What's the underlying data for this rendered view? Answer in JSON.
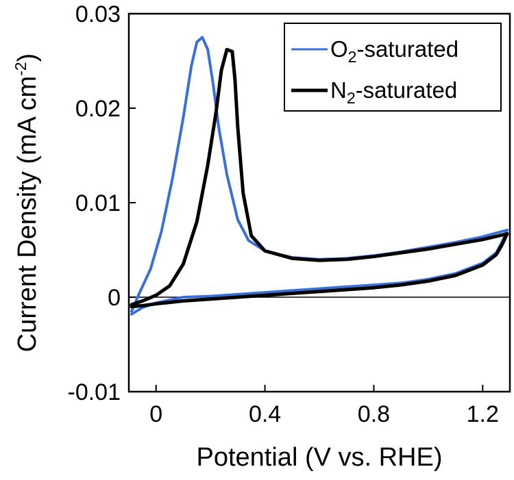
{
  "chart_data": {
    "type": "line",
    "title": "",
    "xlabel": "Potential (V vs. RHE)",
    "ylabel_main": "Current Density (mA cm",
    "ylabel_sup": "-2",
    "ylabel_end": ")",
    "xlim": [
      -0.1,
      1.3
    ],
    "ylim": [
      -0.01,
      0.03
    ],
    "x_ticks": [
      0,
      0.4,
      0.8,
      1.2
    ],
    "x_tick_labels": [
      "0",
      "0.4",
      "0.8",
      "1.2"
    ],
    "y_ticks": [
      -0.01,
      0,
      0.01,
      0.02,
      0.03
    ],
    "y_tick_labels": [
      "-0.01",
      "0",
      "0.01",
      "0.02",
      "0.03"
    ],
    "grid": false,
    "zero_line": true,
    "legend": {
      "placement": "top-right"
    },
    "series": [
      {
        "name": "O2-saturated",
        "legend_parts": [
          "O",
          "2",
          "-saturated"
        ],
        "color": "#3a6fd8",
        "forward": [
          [
            -0.09,
            -0.0015
          ],
          [
            -0.06,
            0.0005
          ],
          [
            -0.02,
            0.003
          ],
          [
            0.02,
            0.007
          ],
          [
            0.06,
            0.0125
          ],
          [
            0.1,
            0.019
          ],
          [
            0.13,
            0.0245
          ],
          [
            0.15,
            0.027
          ],
          [
            0.17,
            0.0275
          ],
          [
            0.19,
            0.0262
          ],
          [
            0.21,
            0.0225
          ],
          [
            0.23,
            0.018
          ],
          [
            0.26,
            0.013
          ],
          [
            0.3,
            0.0082
          ],
          [
            0.34,
            0.006
          ],
          [
            0.4,
            0.0049
          ],
          [
            0.5,
            0.0042
          ],
          [
            0.6,
            0.004
          ],
          [
            0.7,
            0.0041
          ],
          [
            0.8,
            0.0044
          ],
          [
            0.9,
            0.0048
          ],
          [
            1.0,
            0.0053
          ],
          [
            1.1,
            0.0058
          ],
          [
            1.2,
            0.0064
          ],
          [
            1.29,
            0.0071
          ]
        ],
        "reverse": [
          [
            1.29,
            0.0071
          ],
          [
            1.27,
            0.0058
          ],
          [
            1.25,
            0.0047
          ],
          [
            1.2,
            0.0036
          ],
          [
            1.1,
            0.0025
          ],
          [
            1.0,
            0.0019
          ],
          [
            0.9,
            0.0015
          ],
          [
            0.8,
            0.0013
          ],
          [
            0.7,
            0.0011
          ],
          [
            0.6,
            0.0009
          ],
          [
            0.5,
            0.0007
          ],
          [
            0.4,
            0.0005
          ],
          [
            0.3,
            0.0003
          ],
          [
            0.2,
            0.0001
          ],
          [
            0.1,
            0.0
          ],
          [
            0.0,
            -0.0006
          ],
          [
            -0.05,
            -0.0011
          ],
          [
            -0.09,
            -0.0018
          ]
        ]
      },
      {
        "name": "N2-saturated",
        "legend_parts": [
          "N",
          "2",
          "-saturated"
        ],
        "color": "#000000",
        "forward": [
          [
            -0.09,
            -0.0008
          ],
          [
            -0.05,
            -0.0004
          ],
          [
            0.0,
            0.0002
          ],
          [
            0.05,
            0.0012
          ],
          [
            0.1,
            0.0035
          ],
          [
            0.15,
            0.008
          ],
          [
            0.19,
            0.014
          ],
          [
            0.22,
            0.0195
          ],
          [
            0.24,
            0.024
          ],
          [
            0.26,
            0.0262
          ],
          [
            0.28,
            0.026
          ],
          [
            0.29,
            0.023
          ],
          [
            0.3,
            0.018
          ],
          [
            0.32,
            0.011
          ],
          [
            0.35,
            0.0065
          ],
          [
            0.4,
            0.0049
          ],
          [
            0.5,
            0.0041
          ],
          [
            0.6,
            0.0039
          ],
          [
            0.7,
            0.004
          ],
          [
            0.8,
            0.0043
          ],
          [
            0.9,
            0.0047
          ],
          [
            1.0,
            0.0051
          ],
          [
            1.1,
            0.0056
          ],
          [
            1.2,
            0.0061
          ],
          [
            1.29,
            0.0067
          ]
        ],
        "reverse": [
          [
            1.29,
            0.0067
          ],
          [
            1.27,
            0.0055
          ],
          [
            1.25,
            0.0045
          ],
          [
            1.2,
            0.0034
          ],
          [
            1.1,
            0.0023
          ],
          [
            1.0,
            0.0017
          ],
          [
            0.9,
            0.0013
          ],
          [
            0.8,
            0.001
          ],
          [
            0.7,
            0.0008
          ],
          [
            0.6,
            0.0006
          ],
          [
            0.5,
            0.0004
          ],
          [
            0.4,
            0.0002
          ],
          [
            0.3,
            0.0
          ],
          [
            0.2,
            -0.0002
          ],
          [
            0.1,
            -0.0004
          ],
          [
            0.0,
            -0.0007
          ],
          [
            -0.05,
            -0.0009
          ],
          [
            -0.09,
            -0.001
          ]
        ]
      }
    ]
  }
}
